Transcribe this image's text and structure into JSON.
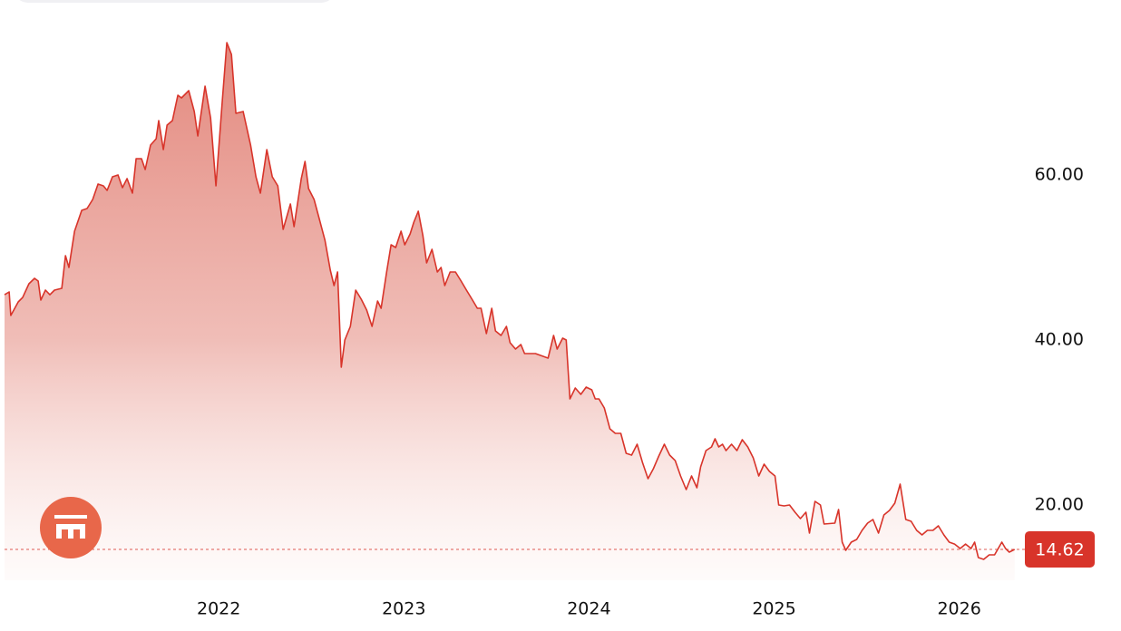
{
  "chart_data": {
    "type": "area",
    "x": [
      2020.843,
      2020.868,
      2020.877,
      2020.917,
      2020.941,
      2020.975,
      2021.005,
      2021.025,
      2021.039,
      2021.064,
      2021.088,
      2021.113,
      2021.152,
      2021.172,
      2021.191,
      2021.221,
      2021.26,
      2021.289,
      2021.319,
      2021.348,
      2021.377,
      2021.397,
      2021.426,
      2021.456,
      2021.48,
      2021.505,
      2021.534,
      2021.554,
      2021.583,
      2021.603,
      2021.632,
      2021.662,
      2021.676,
      2021.701,
      2021.721,
      2021.75,
      2021.779,
      2021.799,
      2021.838,
      2021.868,
      2021.887,
      2021.926,
      2021.956,
      2021.985,
      2022.02,
      2022.044,
      2022.069,
      2022.093,
      2022.132,
      2022.172,
      2022.201,
      2022.225,
      2022.26,
      2022.289,
      2022.319,
      2022.348,
      2022.387,
      2022.407,
      2022.446,
      2022.466,
      2022.485,
      2022.515,
      2022.544,
      2022.574,
      2022.603,
      2022.623,
      2022.642,
      2022.662,
      2022.681,
      2022.711,
      2022.74,
      2022.77,
      2022.799,
      2022.828,
      2022.858,
      2022.877,
      2022.907,
      2022.931,
      2022.956,
      2022.985,
      2023.005,
      2023.034,
      2023.054,
      2023.078,
      2023.103,
      2023.123,
      2023.152,
      2023.181,
      2023.201,
      2023.221,
      2023.25,
      2023.279,
      2023.309,
      2023.338,
      2023.368,
      2023.397,
      2023.417,
      2023.446,
      2023.475,
      2023.495,
      2023.525,
      2023.554,
      2023.574,
      2023.603,
      2023.632,
      2023.652,
      2023.711,
      2023.779,
      2023.809,
      2023.828,
      2023.858,
      2023.877,
      2023.897,
      2023.926,
      2023.956,
      2023.985,
      2024.015,
      2024.034,
      2024.054,
      2024.083,
      2024.113,
      2024.142,
      2024.172,
      2024.201,
      2024.23,
      2024.26,
      2024.289,
      2024.319,
      2024.348,
      2024.377,
      2024.407,
      2024.436,
      2024.466,
      2024.495,
      2024.525,
      2024.554,
      2024.583,
      2024.603,
      2024.632,
      2024.662,
      2024.681,
      2024.701,
      2024.721,
      2024.74,
      2024.77,
      2024.799,
      2024.828,
      2024.858,
      2024.887,
      2024.917,
      2024.946,
      2024.975,
      2025.005,
      2025.025,
      2025.054,
      2025.083,
      2025.113,
      2025.142,
      2025.172,
      2025.191,
      2025.221,
      2025.25,
      2025.27,
      2025.328,
      2025.348,
      2025.368,
      2025.387,
      2025.417,
      2025.446,
      2025.475,
      2025.505,
      2025.534,
      2025.564,
      2025.593,
      2025.623,
      2025.652,
      2025.681,
      2025.711,
      2025.74,
      2025.77,
      2025.799,
      2025.828,
      2025.858,
      2025.887,
      2025.917,
      2025.946,
      2025.975,
      2026.005,
      2026.034,
      2026.064,
      2026.083,
      2026.103,
      2026.132,
      2026.162,
      2026.191,
      2026.23,
      2026.25,
      2026.27,
      2026.299
    ],
    "values": [
      45.49,
      45.82,
      42.97,
      44.62,
      45.16,
      46.81,
      47.47,
      47.14,
      44.84,
      46.04,
      45.49,
      46.04,
      46.26,
      50.22,
      48.79,
      53.19,
      55.71,
      55.93,
      57.03,
      58.9,
      58.68,
      58.13,
      59.78,
      60,
      58.46,
      59.56,
      57.8,
      61.98,
      61.98,
      60.66,
      63.63,
      64.4,
      66.59,
      63.08,
      66.04,
      66.59,
      69.67,
      69.34,
      70.22,
      67.69,
      64.73,
      70.77,
      66.92,
      58.68,
      69.12,
      76.04,
      74.62,
      67.47,
      67.69,
      63.63,
      59.78,
      57.8,
      63.08,
      59.78,
      58.68,
      53.41,
      56.48,
      53.74,
      59.56,
      61.65,
      58.35,
      57.03,
      54.62,
      52.09,
      48.46,
      46.59,
      48.24,
      36.7,
      40,
      41.65,
      46.04,
      44.95,
      43.63,
      41.65,
      44.73,
      43.85,
      48.24,
      51.54,
      51.21,
      53.19,
      51.54,
      52.86,
      54.29,
      55.6,
      52.64,
      49.34,
      50.99,
      48.24,
      48.79,
      46.59,
      48.24,
      48.24,
      47.14,
      46.04,
      44.95,
      43.85,
      43.85,
      40.77,
      43.85,
      41.1,
      40.55,
      41.65,
      39.67,
      38.9,
      39.45,
      38.35,
      38.35,
      37.8,
      40.55,
      38.9,
      40.22,
      40,
      32.86,
      34.18,
      33.41,
      34.29,
      33.96,
      32.86,
      32.86,
      31.76,
      29.23,
      28.68,
      28.68,
      26.26,
      26.04,
      27.36,
      25.16,
      23.19,
      24.4,
      25.93,
      27.36,
      26.04,
      25.38,
      23.52,
      21.87,
      23.52,
      22.09,
      24.62,
      26.59,
      27.03,
      28.02,
      27.03,
      27.36,
      26.59,
      27.36,
      26.59,
      27.91,
      27.03,
      25.71,
      23.52,
      24.95,
      24.07,
      23.52,
      20,
      19.89,
      20,
      19.12,
      18.35,
      19.12,
      16.59,
      20.44,
      20,
      17.69,
      17.8,
      19.45,
      15.49,
      14.51,
      15.49,
      15.82,
      16.92,
      17.8,
      18.24,
      16.59,
      18.79,
      19.34,
      20.22,
      22.53,
      18.24,
      18.02,
      16.92,
      16.37,
      16.92,
      16.92,
      17.47,
      16.37,
      15.49,
      15.27,
      14.73,
      15.27,
      14.73,
      15.49,
      13.63,
      13.41,
      13.96,
      13.96,
      15.49,
      14.73,
      14.29,
      14.62
    ],
    "color": "#d8342a",
    "last_value": 14.62,
    "xlim": [
      2020.843,
      2026.33
    ],
    "xticks": [
      2022,
      2023,
      2024,
      2025,
      2026
    ],
    "ylim": [
      10.88,
      81.21
    ],
    "yticks": [
      {
        "value": 20,
        "label": "20.00"
      },
      {
        "value": 40,
        "label": "40.00"
      },
      {
        "value": 60,
        "label": "60.00"
      }
    ],
    "grid": false
  }
}
